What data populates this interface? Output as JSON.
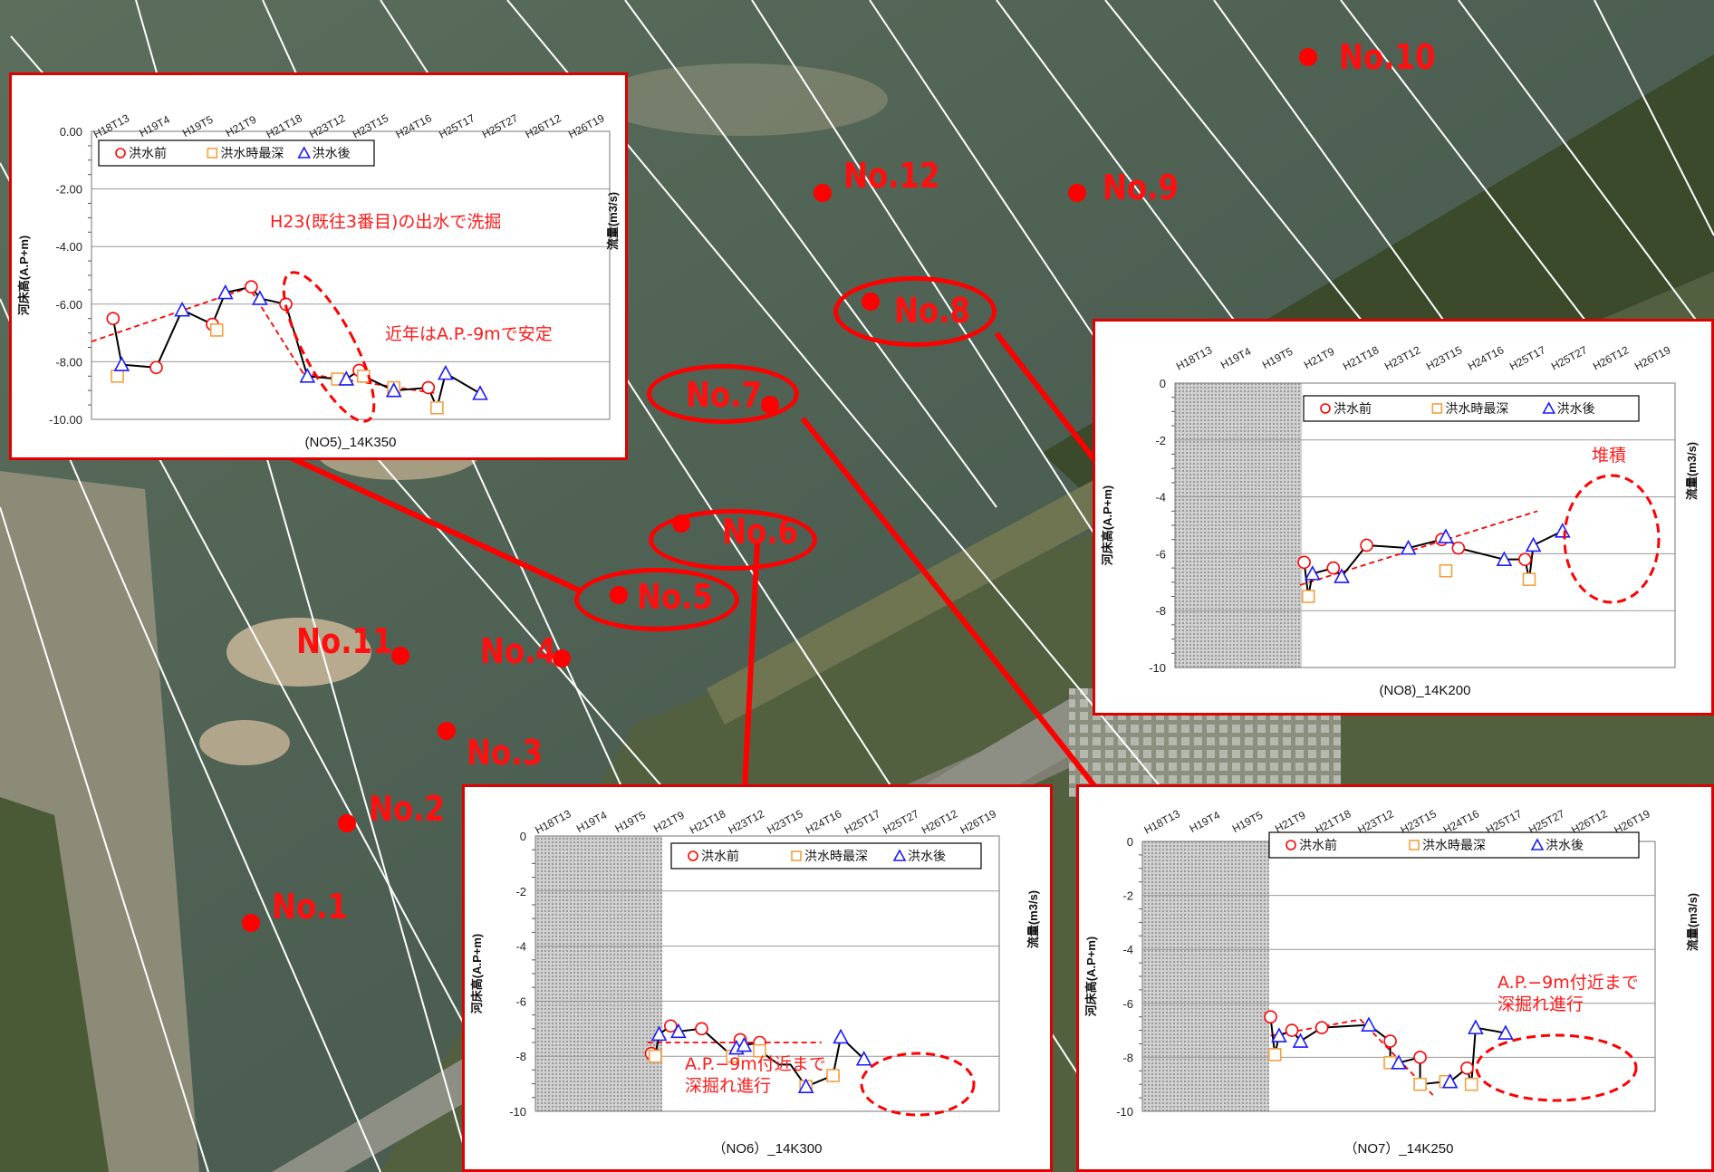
{
  "map": {
    "stations": [
      {
        "label": "No.1"
      },
      {
        "label": "No.2"
      },
      {
        "label": "No.3"
      },
      {
        "label": "No.4"
      },
      {
        "label": "No.5"
      },
      {
        "label": "No.6"
      },
      {
        "label": "No.7"
      },
      {
        "label": "No.8"
      },
      {
        "label": "No.9"
      },
      {
        "label": "No.10"
      },
      {
        "label": "No.11"
      },
      {
        "label": "No.12"
      }
    ]
  },
  "colors": {
    "pre": "#ff0000",
    "deep": "#f4a040",
    "post": "#1a1aff",
    "accent": "#e00000"
  },
  "chart_data": [
    {
      "id": "NO5",
      "type": "scatter",
      "title": "(NO5)_14K350",
      "ylabel": "河床高(A.P+m)",
      "y2label": "流量(m3/s)",
      "ylim": [
        -10,
        0
      ],
      "yticks": [
        "0.00",
        "-2.00",
        "-4.00",
        "-6.00",
        "-8.00",
        "-10.00"
      ],
      "categories": [
        "H18T13",
        "H19T4",
        "H19T5",
        "H21T9",
        "H21T18",
        "H23T12",
        "H23T15",
        "H24T16",
        "H25T17",
        "H25T27",
        "H26T12",
        "H26T19"
      ],
      "legend": [
        "洪水前",
        "洪水時最深",
        "洪水後"
      ],
      "series": [
        {
          "name": "洪水前",
          "marker": "circle",
          "points": [
            [
              0.5,
              -6.5
            ],
            [
              1.5,
              -8.2
            ],
            [
              2.8,
              -6.7
            ],
            [
              3.7,
              -5.4
            ],
            [
              4.5,
              -6.0
            ],
            [
              6.2,
              -8.3
            ],
            [
              7.8,
              -8.9
            ]
          ]
        },
        {
          "name": "洪水時最深",
          "marker": "square",
          "points": [
            [
              0.6,
              -8.5
            ],
            [
              2.9,
              -6.9
            ],
            [
              5.7,
              -8.6
            ],
            [
              6.3,
              -8.5
            ],
            [
              7.0,
              -8.9
            ],
            [
              8.0,
              -9.6
            ]
          ]
        },
        {
          "name": "洪水後",
          "marker": "triangle",
          "points": [
            [
              0.7,
              -8.1
            ],
            [
              2.1,
              -6.2
            ],
            [
              3.1,
              -5.6
            ],
            [
              3.9,
              -5.8
            ],
            [
              5.0,
              -8.5
            ],
            [
              5.9,
              -8.6
            ],
            [
              7.0,
              -9.0
            ],
            [
              8.2,
              -8.4
            ],
            [
              9.0,
              -9.1
            ]
          ]
        }
      ],
      "line": [
        [
          0.5,
          -6.5
        ],
        [
          0.7,
          -8.1
        ],
        [
          1.5,
          -8.2
        ],
        [
          2.1,
          -6.2
        ],
        [
          2.8,
          -6.7
        ],
        [
          3.1,
          -5.6
        ],
        [
          3.7,
          -5.4
        ],
        [
          3.9,
          -5.8
        ],
        [
          4.5,
          -6.0
        ],
        [
          5.0,
          -8.5
        ],
        [
          5.7,
          -8.6
        ],
        [
          5.9,
          -8.6
        ],
        [
          6.2,
          -8.3
        ],
        [
          6.3,
          -8.5
        ],
        [
          7.0,
          -9.0
        ],
        [
          7.8,
          -8.9
        ],
        [
          8.0,
          -9.6
        ],
        [
          8.2,
          -8.4
        ],
        [
          9.0,
          -9.1
        ]
      ],
      "trend": [
        [
          [
            0.0,
            -7.3
          ],
          [
            3.5,
            -5.5
          ]
        ],
        [
          [
            3.6,
            -5.3
          ],
          [
            4.9,
            -8.4
          ]
        ],
        [
          [
            4.9,
            -8.4
          ],
          [
            8.0,
            -9.1
          ]
        ]
      ],
      "annotations": [
        "H23(既往3番目)の出水で洗掘",
        "近年はA.P.-9mで安定"
      ]
    },
    {
      "id": "NO8",
      "type": "scatter",
      "title": "(NO8)_14K200",
      "ylabel": "河床高(A.P+m)",
      "y2label": "流量(m3/s)",
      "ylim": [
        -10,
        0
      ],
      "yticks": [
        "0",
        "-2",
        "-4",
        "-6",
        "-8",
        "-10"
      ],
      "categories": [
        "H18T13",
        "H19T4",
        "H19T5",
        "H21T9",
        "H21T18",
        "H23T12",
        "H23T15",
        "H24T16",
        "H25T17",
        "H25T27",
        "H26T12",
        "H26T19"
      ],
      "legend": [
        "洪水前",
        "洪水時最深",
        "洪水後"
      ],
      "series": [
        {
          "name": "洪水前",
          "marker": "circle",
          "points": [
            [
              3.1,
              -6.3
            ],
            [
              3.8,
              -6.5
            ],
            [
              4.6,
              -5.7
            ],
            [
              6.4,
              -5.5
            ],
            [
              6.8,
              -5.8
            ],
            [
              8.4,
              -6.2
            ]
          ]
        },
        {
          "name": "洪水時最深",
          "marker": "square",
          "points": [
            [
              3.2,
              -7.5
            ],
            [
              6.5,
              -6.6
            ],
            [
              8.5,
              -6.9
            ]
          ]
        },
        {
          "name": "洪水後",
          "marker": "triangle",
          "points": [
            [
              3.3,
              -6.7
            ],
            [
              4.0,
              -6.8
            ],
            [
              5.6,
              -5.8
            ],
            [
              6.5,
              -5.4
            ],
            [
              7.9,
              -6.2
            ],
            [
              8.6,
              -5.7
            ],
            [
              9.3,
              -5.2
            ]
          ]
        }
      ],
      "line": [
        [
          3.1,
          -6.3
        ],
        [
          3.2,
          -7.5
        ],
        [
          3.3,
          -6.7
        ],
        [
          3.8,
          -6.5
        ],
        [
          4.0,
          -6.8
        ],
        [
          4.6,
          -5.7
        ],
        [
          5.6,
          -5.8
        ],
        [
          6.4,
          -5.5
        ],
        [
          6.5,
          -5.4
        ],
        [
          6.8,
          -5.8
        ],
        [
          7.9,
          -6.2
        ],
        [
          8.4,
          -6.2
        ],
        [
          8.5,
          -6.9
        ],
        [
          8.6,
          -5.7
        ],
        [
          9.3,
          -5.2
        ]
      ],
      "trend": [
        [
          [
            3.0,
            -7.1
          ],
          [
            8.7,
            -4.5
          ]
        ]
      ],
      "annotations": [
        "堆積"
      ]
    },
    {
      "id": "NO6",
      "type": "scatter",
      "title": "（NO6）_14K300",
      "ylabel": "河床高(A.P+m)",
      "y2label": "流量(m3/s)",
      "ylim": [
        -10,
        0
      ],
      "yticks": [
        "0",
        "-2",
        "-4",
        "-6",
        "-8",
        "-10"
      ],
      "categories": [
        "H18T13",
        "H19T4",
        "H19T5",
        "H21T9",
        "H21T18",
        "H23T12",
        "H23T15",
        "H24T16",
        "H25T17",
        "H25T27",
        "H26T12",
        "H26T19"
      ],
      "legend": [
        "洪水前",
        "洪水時最深",
        "洪水後"
      ],
      "series": [
        {
          "name": "洪水前",
          "marker": "circle",
          "points": [
            [
              3.0,
              -7.9
            ],
            [
              3.5,
              -6.9
            ],
            [
              4.3,
              -7.0
            ],
            [
              5.3,
              -7.4
            ],
            [
              5.8,
              -7.5
            ],
            [
              7.7,
              -8.7
            ]
          ]
        },
        {
          "name": "洪水時最深",
          "marker": "square",
          "points": [
            [
              3.1,
              -8.0
            ],
            [
              5.1,
              -8.0
            ],
            [
              5.8,
              -7.8
            ],
            [
              7.0,
              -9.1
            ],
            [
              7.7,
              -8.7
            ]
          ]
        },
        {
          "name": "洪水後",
          "marker": "triangle",
          "points": [
            [
              3.2,
              -7.2
            ],
            [
              3.7,
              -7.1
            ],
            [
              5.2,
              -7.7
            ],
            [
              5.4,
              -7.6
            ],
            [
              7.0,
              -9.1
            ],
            [
              7.9,
              -7.3
            ],
            [
              8.5,
              -8.1
            ]
          ]
        }
      ],
      "line": [
        [
          3.0,
          -7.9
        ],
        [
          3.1,
          -8.0
        ],
        [
          3.2,
          -7.2
        ],
        [
          3.5,
          -6.9
        ],
        [
          3.7,
          -7.1
        ],
        [
          4.3,
          -7.0
        ],
        [
          5.1,
          -8.0
        ],
        [
          5.2,
          -7.7
        ],
        [
          5.3,
          -7.4
        ],
        [
          5.4,
          -7.6
        ],
        [
          5.8,
          -7.5
        ],
        [
          5.8,
          -7.8
        ],
        [
          6.3,
          -8.3
        ],
        [
          6.6,
          -8.3
        ],
        [
          7.0,
          -9.1
        ],
        [
          7.7,
          -8.7
        ],
        [
          7.9,
          -7.3
        ],
        [
          8.5,
          -8.1
        ]
      ],
      "trend": [
        [
          [
            2.9,
            -7.5
          ],
          [
            7.4,
            -7.5
          ]
        ]
      ],
      "annotations": [
        "A.P.−9m付近まで",
        "深掘れ進行"
      ]
    },
    {
      "id": "NO7",
      "type": "scatter",
      "title": "（NO7）_14K250",
      "ylabel": "河床高(A.P+m)",
      "y2label": "流量(m3/s)",
      "ylim": [
        -10,
        0
      ],
      "yticks": [
        "0",
        "-2",
        "-4",
        "-6",
        "-8",
        "-10"
      ],
      "categories": [
        "H18T13",
        "H19T4",
        "H19T5",
        "H21T9",
        "H21T18",
        "H23T12",
        "H23T15",
        "H24T16",
        "H25T17",
        "H25T27",
        "H26T12",
        "H26T19"
      ],
      "legend": [
        "洪水前",
        "洪水時最深",
        "洪水後"
      ],
      "series": [
        {
          "name": "洪水前",
          "marker": "circle",
          "points": [
            [
              3.0,
              -6.5
            ],
            [
              3.5,
              -7.0
            ],
            [
              4.2,
              -6.9
            ],
            [
              5.8,
              -7.4
            ],
            [
              6.5,
              -8.0
            ],
            [
              7.6,
              -8.4
            ]
          ]
        },
        {
          "name": "洪水時最深",
          "marker": "square",
          "points": [
            [
              3.1,
              -7.9
            ],
            [
              5.8,
              -8.2
            ],
            [
              6.5,
              -9.0
            ],
            [
              7.1,
              -8.9
            ],
            [
              7.7,
              -9.0
            ]
          ]
        },
        {
          "name": "洪水後",
          "marker": "triangle",
          "points": [
            [
              3.2,
              -7.2
            ],
            [
              3.7,
              -7.4
            ],
            [
              5.3,
              -6.8
            ],
            [
              6.0,
              -8.2
            ],
            [
              7.2,
              -8.9
            ],
            [
              7.8,
              -6.9
            ],
            [
              8.5,
              -7.1
            ]
          ]
        }
      ],
      "line": [
        [
          3.0,
          -6.5
        ],
        [
          3.1,
          -7.9
        ],
        [
          3.2,
          -7.2
        ],
        [
          3.5,
          -7.0
        ],
        [
          3.7,
          -7.4
        ],
        [
          4.2,
          -6.9
        ],
        [
          5.3,
          -6.8
        ],
        [
          5.8,
          -7.4
        ],
        [
          5.8,
          -8.2
        ],
        [
          6.0,
          -8.2
        ],
        [
          6.5,
          -8.0
        ],
        [
          6.5,
          -9.0
        ],
        [
          7.1,
          -8.9
        ],
        [
          7.2,
          -8.9
        ],
        [
          7.6,
          -8.4
        ],
        [
          7.7,
          -9.0
        ],
        [
          7.8,
          -6.9
        ],
        [
          8.5,
          -7.1
        ]
      ],
      "trend": [
        [
          [
            3.0,
            -7.2
          ],
          [
            5.1,
            -6.6
          ]
        ],
        [
          [
            5.1,
            -6.6
          ],
          [
            6.8,
            -9.4
          ]
        ]
      ],
      "annotations": [
        "A.P.−9m付近まで",
        "深掘れ進行"
      ]
    }
  ]
}
